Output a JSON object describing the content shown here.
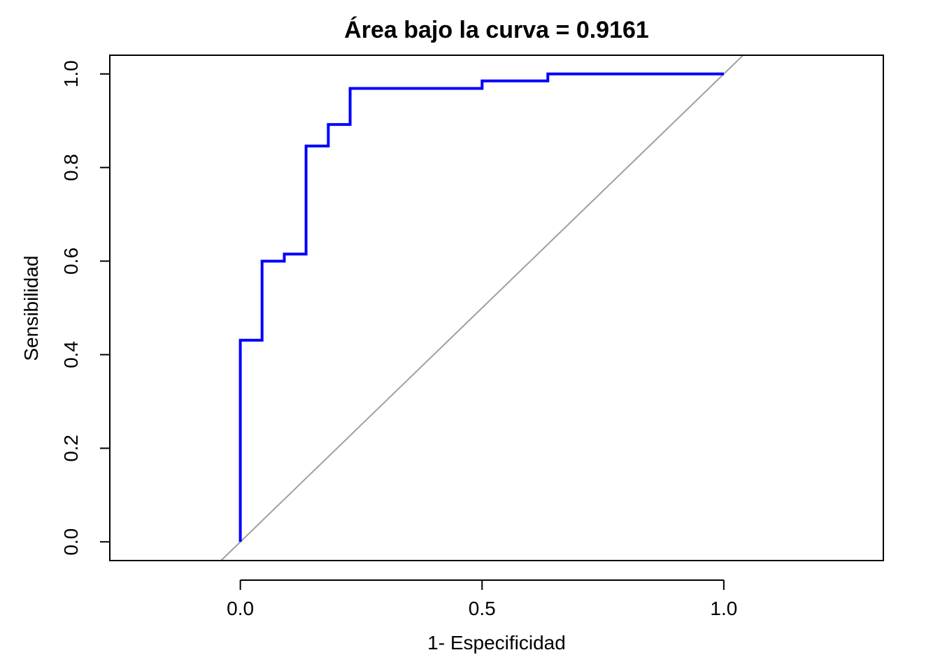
{
  "chart_data": {
    "type": "line",
    "title": "Área bajo la curva = 0.9161",
    "xlabel": "1- Especificidad",
    "ylabel": "Sensibilidad",
    "xlim": [
      -0.27,
      1.33
    ],
    "ylim": [
      -0.04,
      1.04
    ],
    "x_ticks": [
      0.0,
      0.5,
      1.0
    ],
    "x_tick_labels": [
      "0.0",
      "0.5",
      "1.0"
    ],
    "y_ticks": [
      0.0,
      0.2,
      0.4,
      0.6,
      0.8,
      1.0
    ],
    "y_tick_labels": [
      "0.0",
      "0.2",
      "0.4",
      "0.6",
      "0.8",
      "1.0"
    ],
    "grid": false,
    "series": [
      {
        "color": "#0000ff",
        "step": true,
        "x": [
          0.0,
          0.0,
          0.045,
          0.045,
          0.091,
          0.091,
          0.136,
          0.136,
          0.182,
          0.182,
          0.227,
          0.227,
          0.5,
          0.5,
          0.636,
          0.636,
          1.0
        ],
        "y": [
          0.0,
          0.431,
          0.431,
          0.6,
          0.6,
          0.615,
          0.615,
          0.846,
          0.846,
          0.892,
          0.892,
          0.969,
          0.969,
          0.985,
          0.985,
          1.0,
          1.0
        ]
      }
    ],
    "reference_line": {
      "intercept": 0,
      "slope": 1,
      "color": "#a0a0a0"
    }
  }
}
